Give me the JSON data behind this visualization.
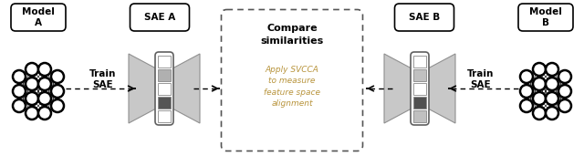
{
  "fig_width": 6.4,
  "fig_height": 1.71,
  "dpi": 100,
  "bg_color": "#ffffff",
  "model_a_label": "Model\nA",
  "model_b_label": "Model\nB",
  "sae_a_label": "SAE A",
  "sae_b_label": "SAE B",
  "train_sae_label": "Train\nSAE",
  "compare_title": "Compare\nsimilarities",
  "compare_body": "Apply SVCCA\nto measure\nfeature space\nalignment",
  "compare_title_color": "#000000",
  "compare_body_color": "#b8943c",
  "sae_a_box_colors": [
    "#ffffff",
    "#b0b0b0",
    "#ffffff",
    "#555555",
    "#ffffff"
  ],
  "sae_b_box_colors": [
    "#ffffff",
    "#c0c0c0",
    "#ffffff",
    "#505050",
    "#c0c0c0"
  ],
  "wing_color": "#c8c8c8",
  "wing_edge_color": "#909090",
  "label_fontsize": 7.5,
  "compare_title_fontsize": 8,
  "compare_body_fontsize": 6.5
}
